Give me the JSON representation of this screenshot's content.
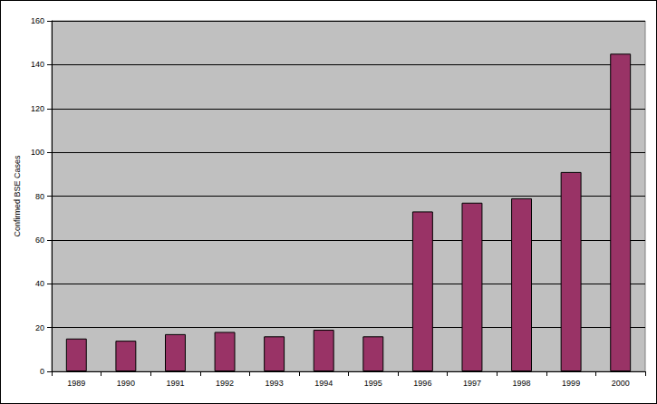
{
  "chart_data": {
    "type": "bar",
    "y_label": "Confirmed BSE Cases",
    "categories": [
      "1989",
      "1990",
      "1991",
      "1992",
      "1993",
      "1994",
      "1995",
      "1996",
      "1997",
      "1998",
      "1999",
      "2000"
    ],
    "values": [
      15,
      14,
      17,
      18,
      16,
      19,
      16,
      73,
      77,
      79,
      91,
      145
    ],
    "color": "#993366",
    "ylim": [
      0,
      160
    ],
    "yticks": [
      0,
      20,
      40,
      60,
      80,
      100,
      120,
      140,
      160
    ],
    "grid": true
  }
}
